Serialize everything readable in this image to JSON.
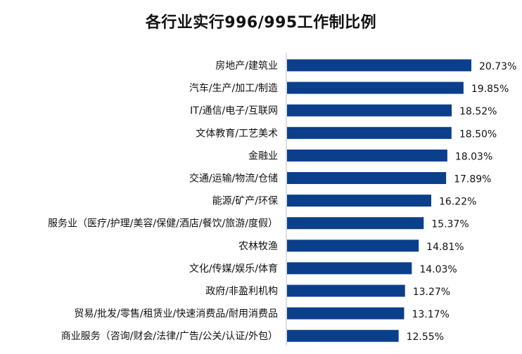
{
  "chart_data": {
    "type": "bar",
    "orientation": "horizontal",
    "title": "各行业实行996/995工作制比例",
    "categories": [
      "房地产/建筑业",
      "汽车/生产/加工/制造",
      "IT/通信/电子/互联网",
      "文体教育/工艺美术",
      "金融业",
      "交通/运输/物流/仓储",
      "能源/矿产/环保",
      "服务业（医疗/护理/美容/保健/酒店/餐饮/旅游/度假）",
      "农林牧渔",
      "文化/传媒/娱乐/体育",
      "政府/非盈利机构",
      "贸易/批发/零售/租赁业/快速消费品/耐用消费品",
      "商业服务（咨询/财会/法律/广告/公关/认证/外包）"
    ],
    "values": [
      20.73,
      19.85,
      18.52,
      18.5,
      18.03,
      17.89,
      16.22,
      15.37,
      14.81,
      14.03,
      13.27,
      13.17,
      12.55
    ],
    "value_labels": [
      "20.73%",
      "19.85%",
      "18.52%",
      "18.50%",
      "18.03%",
      "17.89%",
      "16.22%",
      "15.37%",
      "14.81%",
      "14.03%",
      "13.27%",
      "13.17%",
      "12.55%"
    ],
    "xlim": [
      0,
      20.73
    ],
    "grid": false,
    "legend": "none",
    "bar_color": "#0b3f8c"
  }
}
